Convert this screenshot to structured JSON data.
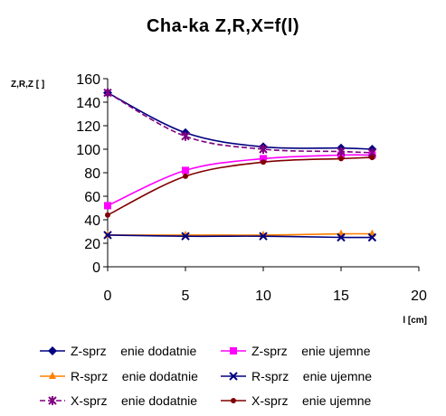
{
  "chart_data": {
    "type": "line",
    "title": "Cha-ka Z,R,X=f(l)",
    "xlabel": "l [cm]",
    "ylabel": "Z,R,Z [ ]",
    "xlim": [
      0,
      20
    ],
    "ylim": [
      0,
      160
    ],
    "x_ticks": [
      0,
      5,
      10,
      15,
      20
    ],
    "y_ticks": [
      0,
      20,
      40,
      60,
      80,
      100,
      120,
      140,
      160
    ],
    "grid": false,
    "legend_position": "bottom",
    "x": [
      0,
      5,
      10,
      15,
      17
    ],
    "series": [
      {
        "name": "Z-sprz    enie dodatnie",
        "values": [
          148,
          114,
          102,
          101,
          100
        ],
        "color": "#000080",
        "marker": "diamond",
        "dash": "solid"
      },
      {
        "name": "Z-sprz    enie ujemne",
        "values": [
          52,
          82,
          92,
          95,
          95
        ],
        "color": "#ff00ff",
        "marker": "square",
        "dash": "solid"
      },
      {
        "name": "R-sprz    enie dodatnie",
        "values": [
          27,
          27,
          27,
          28,
          28
        ],
        "color": "#ff8000",
        "marker": "triangle",
        "dash": "solid"
      },
      {
        "name": "R-sprz    enie ujemne",
        "values": [
          27,
          26,
          26,
          25,
          25
        ],
        "color": "#000080",
        "marker": "x",
        "dash": "solid"
      },
      {
        "name": "X-sprz    enie dodatnie",
        "values": [
          148,
          111,
          100,
          98,
          97
        ],
        "color": "#800080",
        "marker": "star",
        "dash": "dash"
      },
      {
        "name": "X-sprz    enie ujemne",
        "values": [
          44,
          77,
          89,
          92,
          93
        ],
        "color": "#800000",
        "marker": "circle",
        "dash": "solid"
      }
    ]
  }
}
